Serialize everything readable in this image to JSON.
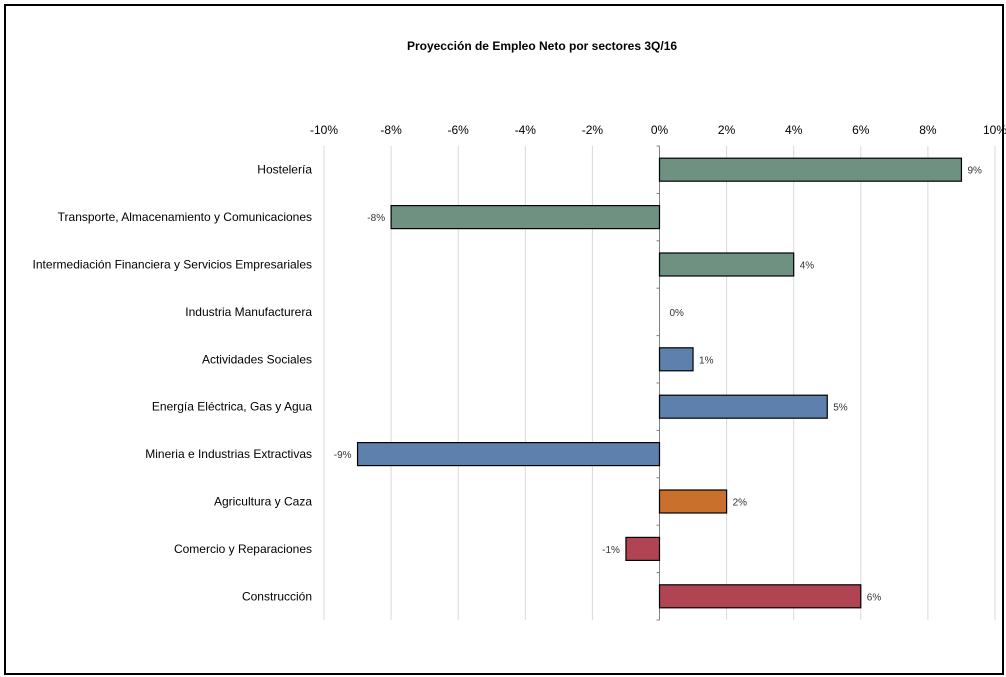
{
  "chart_data": {
    "type": "bar",
    "orientation": "horizontal",
    "title": "Proyección de Empleo Neto por sectores 3Q/16",
    "xlabel": "",
    "ylabel": "",
    "xlim": [
      -10,
      10
    ],
    "x_ticks": [
      "-10%",
      "-8%",
      "-6%",
      "-4%",
      "-2%",
      "0%",
      "2%",
      "4%",
      "6%",
      "8%",
      "10%"
    ],
    "x_tick_values": [
      -10,
      -8,
      -6,
      -4,
      -2,
      0,
      2,
      4,
      6,
      8,
      10
    ],
    "x_axis_position": "top",
    "grid": true,
    "categories": [
      "Hostelería",
      "Transporte, Almacenamiento y Comunicaciones",
      "Intermediación Financiera y Servicios Empresariales",
      "Industria Manufacturera",
      "Actividades Sociales",
      "Energía Eléctrica, Gas y Agua",
      "Mineria e Industrias Extractivas",
      "Agricultura y Caza",
      "Comercio y Reparaciones",
      "Construcción"
    ],
    "values": [
      9,
      -8,
      4,
      0,
      1,
      5,
      -9,
      2,
      -1,
      6
    ],
    "data_labels": [
      "9%",
      "-8%",
      "4%",
      "0%",
      "1%",
      "5%",
      "-9%",
      "2%",
      "-1%",
      "6%"
    ],
    "colors": [
      "#6e9181",
      "#6e9181",
      "#6e9181",
      "#6e9181",
      "#5d80ad",
      "#5d80ad",
      "#5d80ad",
      "#c8702c",
      "#b04453",
      "#b04453"
    ]
  }
}
